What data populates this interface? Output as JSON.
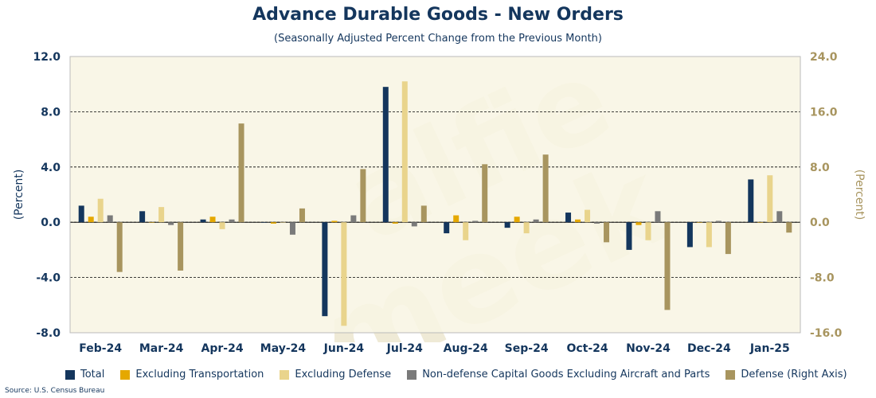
{
  "header": {
    "title": "Advance Durable Goods - New Orders",
    "subtitle": "(Seasonally Adjusted Percent Change from the Previous Month)"
  },
  "footer": {
    "source": "Source: U.S. Census Bureau"
  },
  "watermark": {
    "line1": "alfie",
    "line2": "meek"
  },
  "colors": {
    "plot_background": "#f8f5e4",
    "left_axis": "#14365d",
    "right_axis": "#a8955f"
  },
  "chart_data": {
    "type": "bar",
    "title": "Advance Durable Goods - New Orders",
    "subtitle": "(Seasonally Adjusted Percent Change from the Previous Month)",
    "categories": [
      "Feb-24",
      "Mar-24",
      "Apr-24",
      "May-24",
      "Jun-24",
      "Jul-24",
      "Aug-24",
      "Sep-24",
      "Oct-24",
      "Nov-24",
      "Dec-24",
      "Jan-25"
    ],
    "ylabel": "(Percent)",
    "y2label": "(Percent)",
    "ylim": [
      -8.0,
      12.0
    ],
    "y2lim": [
      -16.0,
      24.0
    ],
    "yticks": [
      "12.0",
      "8.0",
      "4.0",
      "0.0",
      "-4.0",
      "-8.0"
    ],
    "y2ticks": [
      "24.0",
      "16.0",
      "8.0",
      "0.0",
      "-8.0",
      "-16.0"
    ],
    "grid": "horizontal dashed",
    "legend_position": "bottom",
    "series": [
      {
        "name": "Total",
        "axis": "left",
        "color": "#14365d",
        "values": [
          1.2,
          0.8,
          0.2,
          0.0,
          -6.8,
          9.8,
          -0.8,
          -0.4,
          0.7,
          -2.0,
          -1.8,
          3.1
        ]
      },
      {
        "name": "Excluding Transportation",
        "axis": "left",
        "color": "#e5a800",
        "values": [
          0.4,
          0.0,
          0.4,
          -0.1,
          0.1,
          -0.1,
          0.5,
          0.4,
          0.2,
          -0.2,
          0.0,
          0.0
        ]
      },
      {
        "name": "Excluding Defense",
        "axis": "left",
        "color": "#e9d48c",
        "values": [
          1.7,
          1.1,
          -0.5,
          0.0,
          -7.5,
          10.2,
          -1.3,
          -0.8,
          0.9,
          -1.3,
          -1.8,
          3.4
        ]
      },
      {
        "name": "Non-defense Capital Goods Excluding Aircraft and Parts",
        "axis": "left",
        "color": "#7a7a7a",
        "values": [
          0.5,
          -0.2,
          0.2,
          -0.9,
          0.5,
          -0.3,
          0.1,
          0.2,
          -0.1,
          0.8,
          0.1,
          0.8
        ]
      },
      {
        "name": "Defense (Right Axis)",
        "axis": "right",
        "color": "#a8955f",
        "values": [
          -7.2,
          -7.0,
          14.3,
          2.0,
          7.7,
          2.4,
          8.4,
          9.8,
          -2.9,
          -12.7,
          -4.6,
          -1.5
        ]
      }
    ]
  }
}
